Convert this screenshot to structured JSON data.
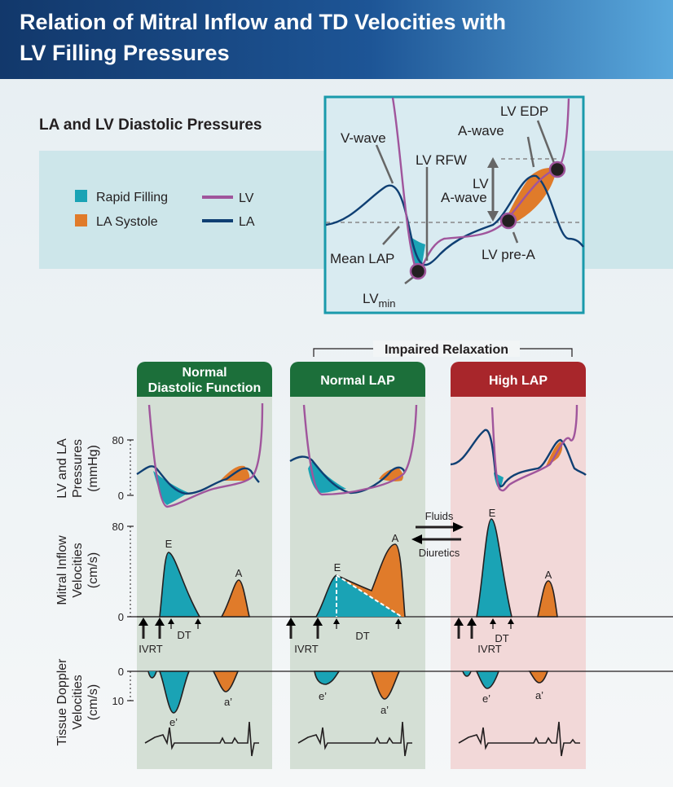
{
  "header": {
    "title": [
      "Relation of Mitral Inflow and TD Velocities with",
      "LV Filling Pressures"
    ]
  },
  "section_title": "LA and LV Diastolic Pressures",
  "legend": [
    {
      "label": "Rapid Filling",
      "color": "#1aa3b5"
    },
    {
      "label": "LA Systole",
      "color": "#e07b2a"
    },
    {
      "label": "LV",
      "color": "#a0559c"
    },
    {
      "label": "LA",
      "color": "#0f3f73"
    }
  ],
  "inset": {
    "v_wave": "V-wave",
    "lv_rfw": "LV RFW",
    "lv_edp": "LV EDP",
    "a_wave": "A-wave",
    "lv_a_wave": [
      "LV",
      "A-wave"
    ],
    "mean_lap": "Mean LAP",
    "lv_pre_a": "LV pre-A",
    "lv_min": [
      "LV",
      "min"
    ]
  },
  "group_label": "Impaired Relaxation",
  "row_labels": [
    [
      "LV and LA",
      "Pressures",
      "(mmHg)"
    ],
    [
      "Mitral Inflow",
      "Velocities",
      "(cm/s)"
    ],
    [
      "Tissue Doppler",
      "Velocities",
      "(cm/s)"
    ]
  ],
  "ticks": {
    "pressure": [
      "80",
      "0"
    ],
    "mitral": [
      "80",
      "0"
    ],
    "tissue": [
      "0",
      "10"
    ]
  },
  "panels": [
    {
      "title": [
        "Normal",
        "Diastolic Function"
      ],
      "labels": {
        "E": "E",
        "A": "A",
        "ivrt": "IVRT",
        "dt": "DT",
        "e": "e’",
        "a": "a’"
      }
    },
    {
      "title": [
        "Normal LAP"
      ],
      "labels": {
        "E": "E",
        "A": "A",
        "ivrt": "IVRT",
        "dt": "DT",
        "e": "e’",
        "a": "a’"
      }
    },
    {
      "title": [
        "High LAP"
      ],
      "labels": {
        "E": "E",
        "A": "A",
        "ivrt": "IVRT",
        "dt": "DT",
        "e": "e’",
        "a": "a’"
      }
    }
  ],
  "therapy": {
    "fluids": "Fluids",
    "diuretics": "Diuretics"
  }
}
